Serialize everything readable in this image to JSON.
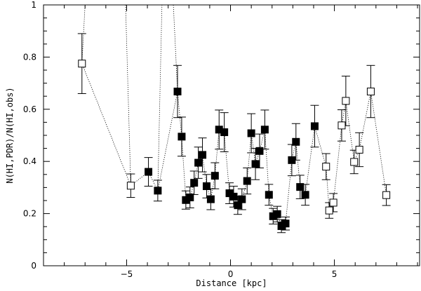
{
  "chart_data": {
    "type": "scatter",
    "title": "",
    "xlabel": "Distance [kpc]",
    "ylabel": "N(HI,PDR)/N(HI,obs)",
    "xlim": [
      -9.0,
      9.1
    ],
    "ylim": [
      0,
      1
    ],
    "x_ticks": [
      -5,
      0,
      5
    ],
    "x_tick_labels": [
      "−5",
      "0",
      "5"
    ],
    "y_ticks": [
      0,
      0.2,
      0.4,
      0.6,
      0.8,
      1
    ],
    "y_tick_labels": [
      "0",
      "0.2",
      "0.4",
      "0.6",
      "0.8",
      "1"
    ],
    "grid": false,
    "connector": "dotted line through points in order of distance",
    "colors": {
      "filled": "#000000",
      "open_edge": "#000000",
      "open_fill": "#ffffff",
      "line": "#000000"
    },
    "series": [
      {
        "marker": "open-square",
        "points": [
          {
            "x": -7.15,
            "y": 0.775,
            "err_lo": 0.115,
            "err_hi": 0.115
          },
          {
            "x": -4.8,
            "y": 0.307,
            "err_lo": 0.045,
            "err_hi": 0.045
          },
          {
            "x": 4.6,
            "y": 0.38,
            "err_lo": 0.05,
            "err_hi": 0.05
          },
          {
            "x": 4.75,
            "y": 0.212,
            "err_lo": 0.03,
            "err_hi": 0.03
          },
          {
            "x": 4.95,
            "y": 0.242,
            "err_lo": 0.035,
            "err_hi": 0.035
          },
          {
            "x": 5.35,
            "y": 0.538,
            "err_lo": 0.06,
            "err_hi": 0.06
          },
          {
            "x": 5.55,
            "y": 0.632,
            "err_lo": 0.095,
            "err_hi": 0.095
          },
          {
            "x": 5.95,
            "y": 0.398,
            "err_lo": 0.045,
            "err_hi": 0.045
          },
          {
            "x": 6.2,
            "y": 0.445,
            "err_lo": 0.065,
            "err_hi": 0.065
          },
          {
            "x": 6.75,
            "y": 0.668,
            "err_lo": 0.1,
            "err_hi": 0.1
          },
          {
            "x": 7.5,
            "y": 0.271,
            "err_lo": 0.04,
            "err_hi": 0.04
          }
        ]
      },
      {
        "marker": "filled-square",
        "points": [
          {
            "x": -3.95,
            "y": 0.36,
            "err_lo": 0.055,
            "err_hi": 0.055
          },
          {
            "x": -3.5,
            "y": 0.288,
            "err_lo": 0.04,
            "err_hi": 0.04
          },
          {
            "x": -2.55,
            "y": 0.668,
            "err_lo": 0.1,
            "err_hi": 0.1
          },
          {
            "x": -2.35,
            "y": 0.495,
            "err_lo": 0.075,
            "err_hi": 0.075
          },
          {
            "x": -2.15,
            "y": 0.252,
            "err_lo": 0.035,
            "err_hi": 0.035
          },
          {
            "x": -1.95,
            "y": 0.262,
            "err_lo": 0.04,
            "err_hi": 0.04
          },
          {
            "x": -1.75,
            "y": 0.318,
            "err_lo": 0.045,
            "err_hi": 0.045
          },
          {
            "x": -1.55,
            "y": 0.395,
            "err_lo": 0.06,
            "err_hi": 0.06
          },
          {
            "x": -1.35,
            "y": 0.425,
            "err_lo": 0.065,
            "err_hi": 0.065
          },
          {
            "x": -1.15,
            "y": 0.305,
            "err_lo": 0.045,
            "err_hi": 0.045
          },
          {
            "x": -0.95,
            "y": 0.255,
            "err_lo": 0.04,
            "err_hi": 0.04
          },
          {
            "x": -0.75,
            "y": 0.345,
            "err_lo": 0.05,
            "err_hi": 0.05
          },
          {
            "x": -0.55,
            "y": 0.522,
            "err_lo": 0.075,
            "err_hi": 0.075
          },
          {
            "x": -0.3,
            "y": 0.512,
            "err_lo": 0.075,
            "err_hi": 0.075
          },
          {
            "x": -0.05,
            "y": 0.278,
            "err_lo": 0.04,
            "err_hi": 0.04
          },
          {
            "x": 0.15,
            "y": 0.265,
            "err_lo": 0.04,
            "err_hi": 0.04
          },
          {
            "x": 0.35,
            "y": 0.232,
            "err_lo": 0.035,
            "err_hi": 0.035
          },
          {
            "x": 0.55,
            "y": 0.255,
            "err_lo": 0.04,
            "err_hi": 0.04
          },
          {
            "x": 0.8,
            "y": 0.325,
            "err_lo": 0.05,
            "err_hi": 0.05
          },
          {
            "x": 1.0,
            "y": 0.508,
            "err_lo": 0.075,
            "err_hi": 0.075
          },
          {
            "x": 1.2,
            "y": 0.39,
            "err_lo": 0.06,
            "err_hi": 0.06
          },
          {
            "x": 1.4,
            "y": 0.44,
            "err_lo": 0.065,
            "err_hi": 0.065
          },
          {
            "x": 1.65,
            "y": 0.522,
            "err_lo": 0.075,
            "err_hi": 0.075
          },
          {
            "x": 1.85,
            "y": 0.272,
            "err_lo": 0.04,
            "err_hi": 0.04
          },
          {
            "x": 2.05,
            "y": 0.19,
            "err_lo": 0.03,
            "err_hi": 0.03
          },
          {
            "x": 2.25,
            "y": 0.198,
            "err_lo": 0.03,
            "err_hi": 0.03
          },
          {
            "x": 2.45,
            "y": 0.152,
            "err_lo": 0.025,
            "err_hi": 0.025
          },
          {
            "x": 2.65,
            "y": 0.162,
            "err_lo": 0.025,
            "err_hi": 0.025
          },
          {
            "x": 2.95,
            "y": 0.405,
            "err_lo": 0.06,
            "err_hi": 0.06
          },
          {
            "x": 3.15,
            "y": 0.475,
            "err_lo": 0.07,
            "err_hi": 0.07
          },
          {
            "x": 3.35,
            "y": 0.302,
            "err_lo": 0.045,
            "err_hi": 0.045
          },
          {
            "x": 3.6,
            "y": 0.272,
            "err_lo": 0.04,
            "err_hi": 0.04
          },
          {
            "x": 4.05,
            "y": 0.535,
            "err_lo": 0.08,
            "err_hi": 0.08
          }
        ]
      }
    ],
    "off_scale_connectors": [
      {
        "from": {
          "x": -7.15,
          "y": 0.775
        },
        "to": {
          "x": -7.0,
          "y": 1.0
        }
      },
      {
        "from": {
          "x": -5.05,
          "y": 1.0
        },
        "to": {
          "x": -4.8,
          "y": 0.307
        }
      },
      {
        "from": {
          "x": -3.5,
          "y": 0.288
        },
        "to": {
          "x": -3.3,
          "y": 1.0
        }
      },
      {
        "from": {
          "x": -2.75,
          "y": 1.0
        },
        "to": {
          "x": -2.55,
          "y": 0.668
        }
      }
    ]
  }
}
